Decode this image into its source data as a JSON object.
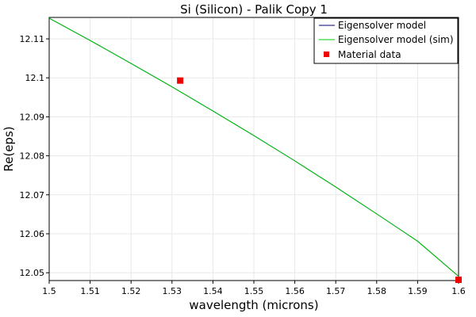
{
  "chart_data": {
    "type": "line",
    "title": "Si (Silicon) - Palik Copy 1",
    "xlabel": "wavelength (microns)",
    "ylabel": "Re(eps)",
    "xlim": [
      1.5,
      1.6
    ],
    "ylim": [
      12.048,
      12.1155
    ],
    "xticks": [
      1.5,
      1.51,
      1.52,
      1.53,
      1.54,
      1.55,
      1.56,
      1.57,
      1.58,
      1.59,
      1.6
    ],
    "xtick_labels": [
      "1.5",
      "1.51",
      "1.52",
      "1.53",
      "1.54",
      "1.55",
      "1.56",
      "1.57",
      "1.58",
      "1.59",
      "1.6"
    ],
    "yticks": [
      12.05,
      12.06,
      12.07,
      12.08,
      12.09,
      12.1,
      12.11
    ],
    "ytick_labels": [
      "12.05",
      "12.06",
      "12.07",
      "12.08",
      "12.09",
      "12.1",
      "12.11"
    ],
    "grid": true,
    "legend_position": "top-right",
    "series": [
      {
        "name": "Eigensolver model",
        "kind": "line",
        "color": "#00007f",
        "x": [
          1.5,
          1.51,
          1.52,
          1.53,
          1.54,
          1.55,
          1.56,
          1.57,
          1.58,
          1.59,
          1.6
        ],
        "y": [
          12.1153,
          12.1096,
          12.1037,
          12.0977,
          12.0915,
          12.0852,
          12.0787,
          12.072,
          12.0651,
          12.0581,
          12.0491
        ]
      },
      {
        "name": "Eigensolver model (sim)",
        "kind": "line",
        "color": "#00cc00",
        "x": [
          1.5,
          1.51,
          1.52,
          1.53,
          1.54,
          1.55,
          1.56,
          1.57,
          1.58,
          1.59,
          1.6
        ],
        "y": [
          12.1153,
          12.1096,
          12.1037,
          12.0977,
          12.0915,
          12.0852,
          12.0787,
          12.072,
          12.0651,
          12.0581,
          12.0491
        ]
      },
      {
        "name": "Material data",
        "kind": "scatter",
        "color": "#ee0000",
        "x": [
          1.532,
          1.6
        ],
        "y": [
          12.0993,
          12.0482
        ]
      }
    ]
  }
}
